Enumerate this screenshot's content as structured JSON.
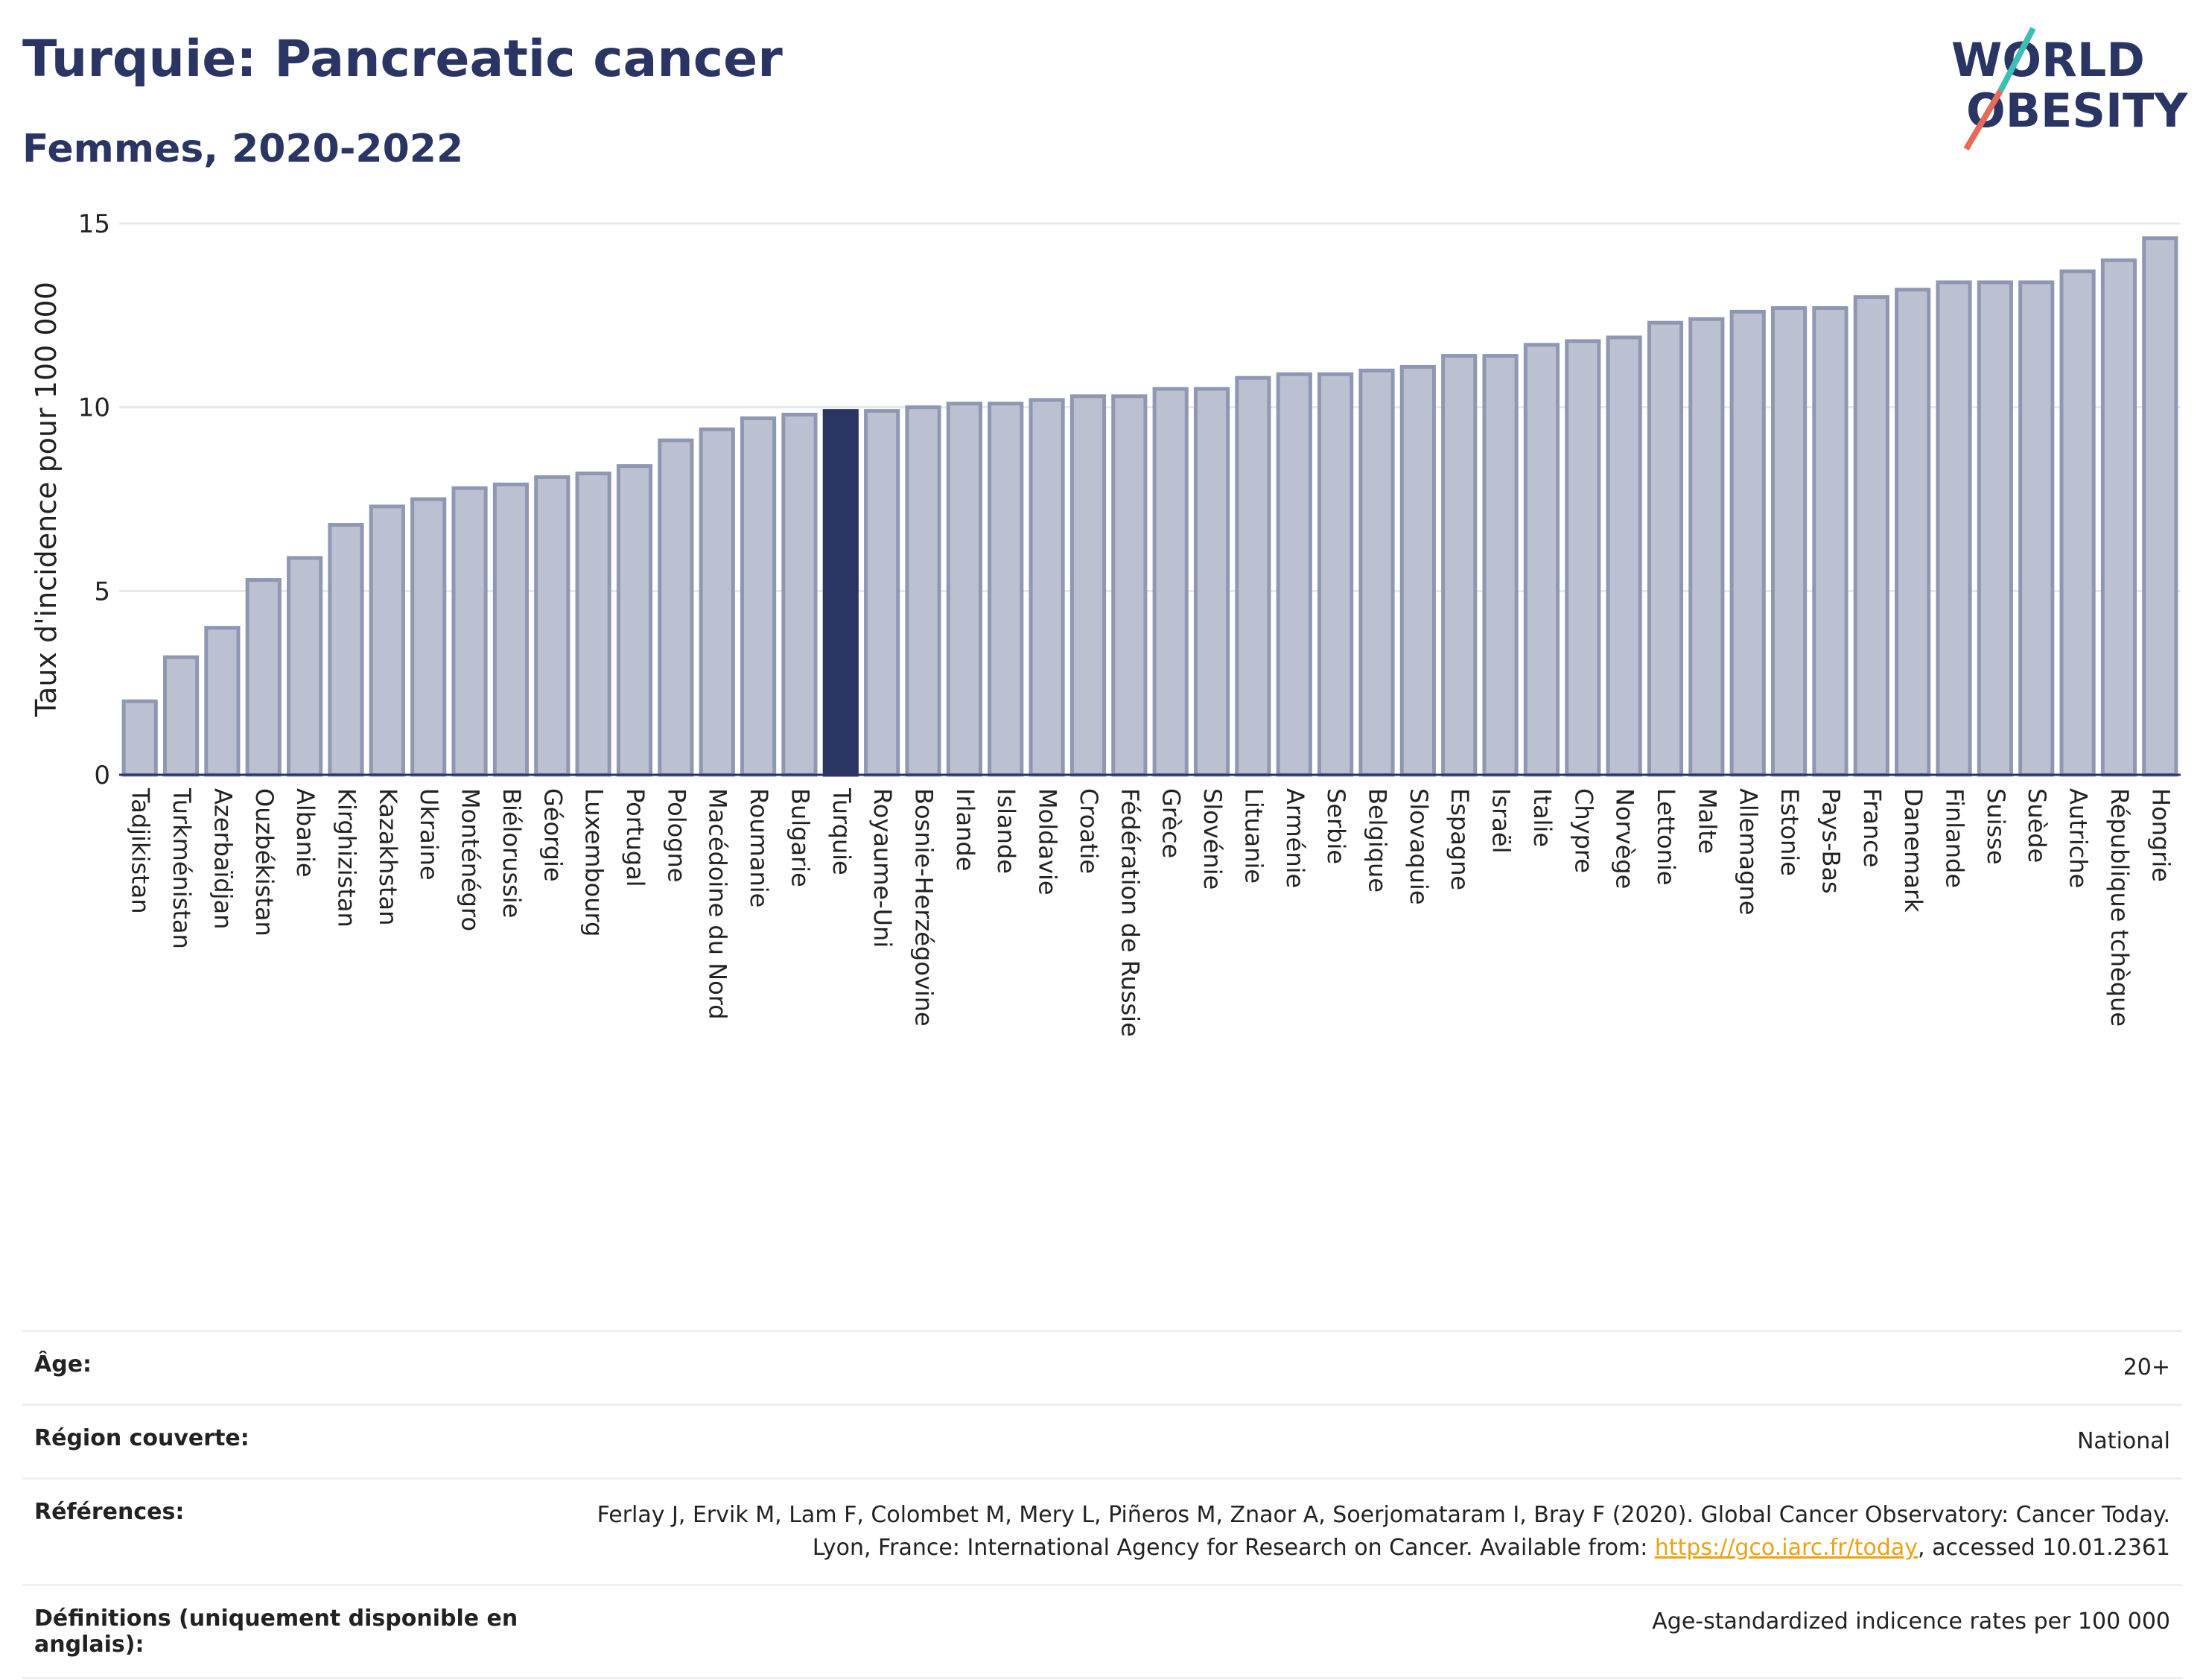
{
  "header": {
    "title": "Turquie: Pancreatic cancer",
    "subtitle": "Femmes, 2020-2022"
  },
  "logo": {
    "line1": "WORLD",
    "line2": "OBESITY"
  },
  "colors": {
    "bar": "#bcc1d2",
    "bar_stroke": "#8f97b3",
    "highlight": "#2b3563",
    "grid": "#e6e8ef",
    "link": "#e8a317"
  },
  "chart_data": {
    "type": "bar",
    "ylabel": "Taux d'incidence pour 100 000",
    "ylim": [
      0,
      15
    ],
    "yticks": [
      0,
      5,
      10,
      15
    ],
    "highlight": "Turquie",
    "grid": true,
    "categories": [
      "Tadjikistan",
      "Turkménistan",
      "Azerbaïdjan",
      "Ouzbékistan",
      "Albanie",
      "Kirghizistan",
      "Kazakhstan",
      "Ukraine",
      "Monténégro",
      "Biélorussie",
      "Géorgie",
      "Luxembourg",
      "Portugal",
      "Pologne",
      "Macédoine du Nord",
      "Roumanie",
      "Bulgarie",
      "Turquie",
      "Royaume-Uni",
      "Bosnie-Herzégovine",
      "Irlande",
      "Islande",
      "Moldavie",
      "Croatie",
      "Fédération de Russie",
      "Grèce",
      "Slovénie",
      "Lituanie",
      "Arménie",
      "Serbie",
      "Belgique",
      "Slovaquie",
      "Espagne",
      "Israël",
      "Italie",
      "Chypre",
      "Norvège",
      "Lettonie",
      "Malte",
      "Allemagne",
      "Estonie",
      "Pays-Bas",
      "France",
      "Danemark",
      "Finlande",
      "Suisse",
      "Suède",
      "Autriche",
      "République tchèque",
      "Hongrie"
    ],
    "values": [
      2.0,
      3.2,
      4.0,
      5.3,
      5.9,
      6.8,
      7.3,
      7.5,
      7.8,
      7.9,
      8.1,
      8.2,
      8.4,
      9.1,
      9.4,
      9.7,
      9.8,
      9.9,
      9.9,
      10.0,
      10.1,
      10.1,
      10.2,
      10.3,
      10.3,
      10.5,
      10.5,
      10.8,
      10.9,
      10.9,
      11.0,
      11.1,
      11.4,
      11.4,
      11.7,
      11.8,
      11.9,
      12.3,
      12.4,
      12.6,
      12.7,
      12.7,
      13.0,
      13.2,
      13.4,
      13.4,
      13.4,
      13.7,
      14.0,
      14.6
    ]
  },
  "meta": {
    "age_label": "Âge:",
    "age_value": "20+",
    "region_label": "Région couverte:",
    "region_value": "National",
    "refs_label": "Références:",
    "refs_text1": "Ferlay J, Ervik M, Lam F, Colombet M, Mery L, Piñeros M, Znaor A, Soerjomataram I, Bray F (2020). Global Cancer Observatory: Cancer Today. Lyon, France: International Agency for Research on Cancer. Available from: ",
    "refs_link": "https://gco.iarc.fr/today",
    "refs_text2": ", accessed 10.01.2361",
    "defs_label": "Définitions (uniquement disponible en anglais):",
    "defs_value": "Age-standardized indicence rates per 100 000"
  }
}
